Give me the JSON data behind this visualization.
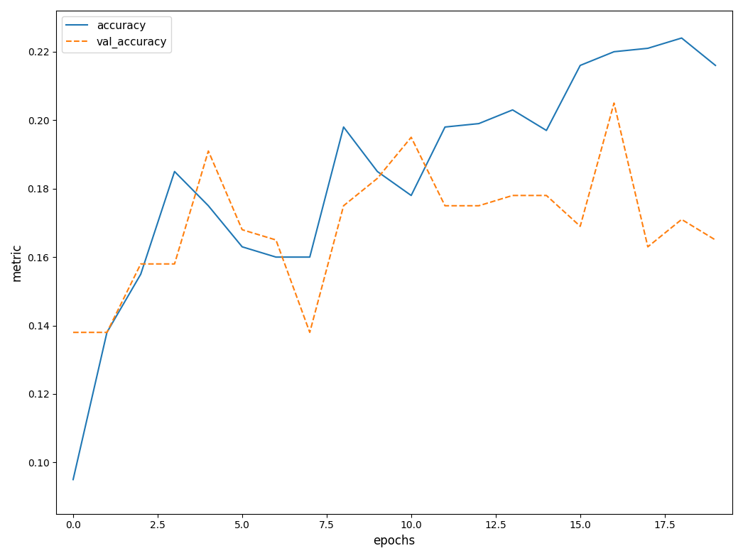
{
  "accuracy": [
    0.095,
    0.138,
    0.155,
    0.185,
    0.175,
    0.163,
    0.16,
    0.16,
    0.198,
    0.185,
    0.178,
    0.198,
    0.199,
    0.203,
    0.197,
    0.216,
    0.22,
    0.221,
    0.224,
    0.216
  ],
  "val_accuracy": [
    0.138,
    0.138,
    0.158,
    0.158,
    0.191,
    0.168,
    0.165,
    0.138,
    0.175,
    0.183,
    0.195,
    0.175,
    0.175,
    0.178,
    0.178,
    0.169,
    0.205,
    0.163,
    0.171,
    0.165
  ],
  "accuracy_color": "#1f77b4",
  "val_accuracy_color": "#ff7f0e",
  "xlabel": "epochs",
  "ylabel": "metric",
  "legend_labels": [
    "accuracy",
    "val_accuracy"
  ],
  "figsize": [
    10.46,
    7.86
  ],
  "dpi": 100,
  "xlim": [
    -0.5,
    19.5
  ],
  "ylim": [
    0.085,
    0.232
  ]
}
